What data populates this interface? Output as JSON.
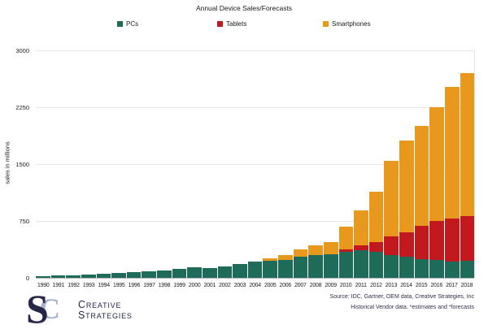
{
  "title": "Annual Device Sales/Forecasts",
  "legend": [
    {
      "label": "PCs",
      "color": "#1E6B59"
    },
    {
      "label": "Tablets",
      "color": "#C2191F"
    },
    {
      "label": "Smartphones",
      "color": "#E8981C"
    }
  ],
  "y_axis": {
    "title": "sales in millions",
    "ticks": [
      0,
      750,
      1500,
      2250,
      3000
    ],
    "max": 3000
  },
  "chart_data": {
    "type": "bar",
    "stacked": true,
    "title": "Annual Device Sales/Forecasts",
    "ylabel": "sales in millions",
    "ylim": [
      0,
      3000
    ],
    "grid": true,
    "legend_position": "top",
    "categories": [
      1990,
      1991,
      1992,
      1993,
      1994,
      1995,
      1996,
      1997,
      1998,
      1999,
      2000,
      2001,
      2002,
      2003,
      2004,
      2005,
      2006,
      2007,
      2008,
      2009,
      2010,
      2011,
      2012,
      2013,
      2014,
      2015,
      2016,
      2017,
      2018
    ],
    "series": [
      {
        "name": "PCs",
        "color": "#1E6B59",
        "values": [
          25,
          28,
          35,
          43,
          50,
          60,
          72,
          85,
          97,
          118,
          135,
          132,
          148,
          185,
          210,
          225,
          235,
          280,
          305,
          315,
          345,
          360,
          345,
          300,
          275,
          250,
          235,
          215,
          225
        ]
      },
      {
        "name": "Tablets",
        "color": "#C2191F",
        "values": [
          0,
          0,
          0,
          0,
          0,
          0,
          0,
          0,
          0,
          0,
          0,
          0,
          0,
          0,
          0,
          0,
          0,
          0,
          0,
          0,
          35,
          70,
          130,
          250,
          330,
          440,
          510,
          565,
          590
        ]
      },
      {
        "name": "Smartphones",
        "color": "#E8981C",
        "values": [
          0,
          0,
          0,
          0,
          0,
          0,
          0,
          0,
          0,
          0,
          0,
          0,
          0,
          0,
          0,
          35,
          65,
          95,
          125,
          160,
          290,
          455,
          665,
          990,
          1205,
          1310,
          1505,
          1740,
          1885
        ]
      }
    ]
  },
  "footer": {
    "source": "Source: IDC, Gartner, OEM data, Creative Strategies, Inc",
    "note": "Historical Vendor data. *estimates and *forecasts"
  },
  "brand": {
    "monogram_c": "C",
    "monogram_s": "S",
    "line1": "Creative",
    "line2": "Strategies"
  }
}
